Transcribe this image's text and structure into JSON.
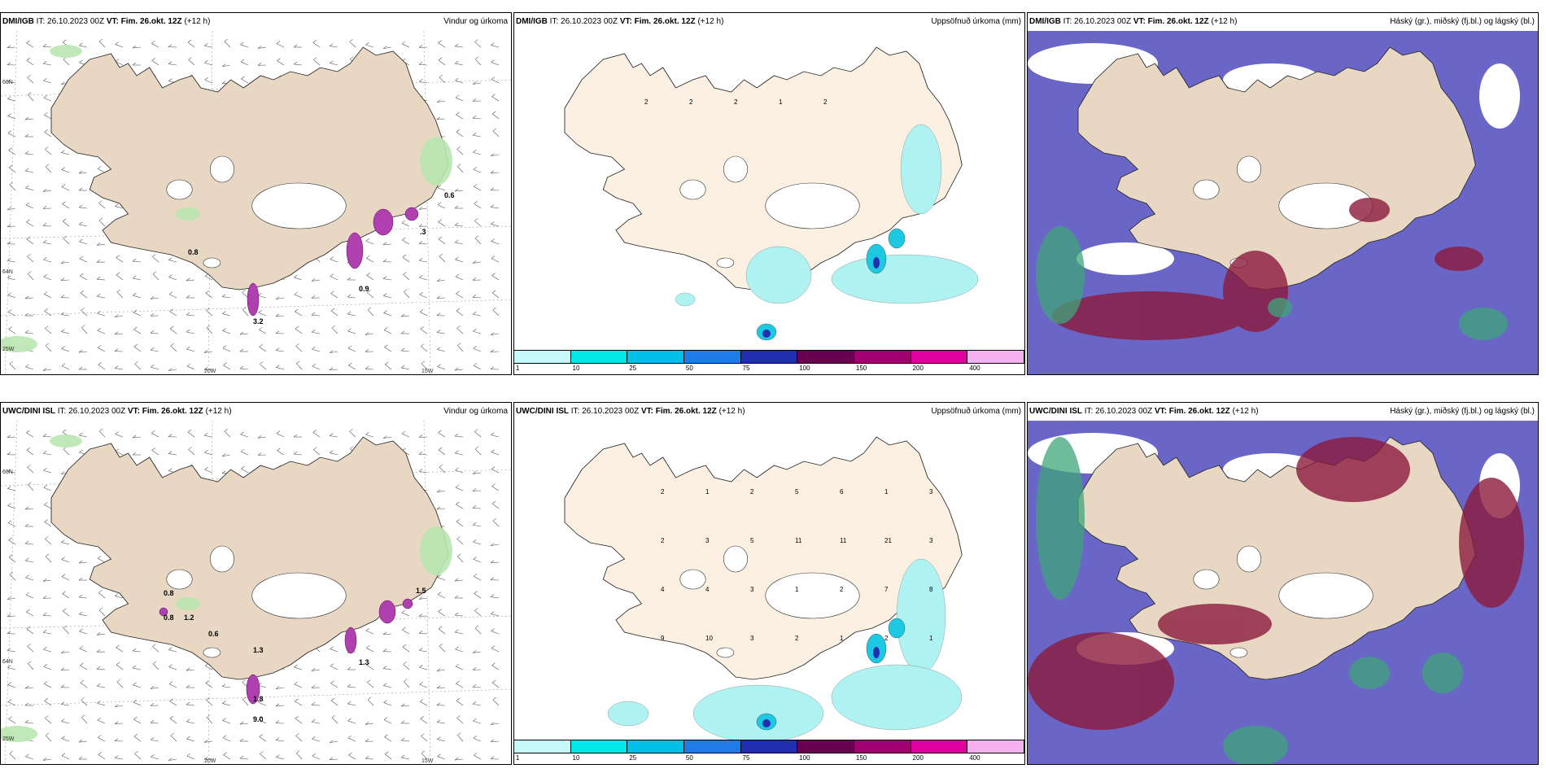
{
  "colors": {
    "land": "#e8d8c3",
    "land_light": "#fcf0e3",
    "high_cloud": "#6a66c8",
    "mid_cloud": "#8b1a3c",
    "low_cloud": "#3fa57a",
    "precip_light": "#aef2f2",
    "precip_mid": "#1cc9e0",
    "precip_heavy": "#2030b0",
    "precip_purple": "#b040b0"
  },
  "rows": [
    {
      "model": "DMI/IGB",
      "it": "IT: 26.10.2023 00Z",
      "vt": "VT: Fim. 26.okt. 12Z",
      "lead": "(+12 h)",
      "panels": {
        "wind": {
          "title": "Vindur og úrkoma",
          "values": [
            "0.6",
            ".3",
            "0.8",
            "0.9",
            "3.2"
          ]
        },
        "precip": {
          "title": "Uppsöfnuð úrkoma (mm)",
          "values": [
            "2",
            "2",
            "2",
            "1",
            "2"
          ]
        },
        "cloud": {
          "title": "Háský (gr.), miðský (fj.bl.) og lágský (bl.)"
        }
      }
    },
    {
      "model": "UWC/DINI ISL",
      "it": "IT: 26.10.2023 00Z",
      "vt": "VT: Fim. 26.okt. 12Z",
      "lead": "(+12 h)",
      "panels": {
        "wind": {
          "title": "Vindur og úrkoma",
          "values": [
            "0.8",
            "0.8",
            "1.2",
            "0.6",
            "1.3",
            "1.3",
            "1.5",
            "1.8",
            "9.0"
          ]
        },
        "precip": {
          "title": "Uppsöfnuð úrkoma (mm)",
          "values": [
            "2",
            "1",
            "2",
            "5",
            "6",
            "1",
            "3",
            "2",
            "3",
            "5",
            "11",
            "11",
            "21",
            "3",
            "4",
            "4",
            "3",
            "1",
            "2",
            "7",
            "8",
            "9",
            "10",
            "3",
            "2",
            "1",
            "2",
            "1"
          ]
        },
        "cloud": {
          "title": "Háský (gr.), miðský (fj.bl.) og lágský (bl.)"
        }
      }
    }
  ],
  "axis_labels": {
    "lon": [
      "20W",
      "15W"
    ],
    "lat": [
      "66N",
      "64N"
    ],
    "edge": [
      "25W"
    ]
  },
  "legend": {
    "ticks": [
      "1",
      "10",
      "25",
      "50",
      "75",
      "100",
      "150",
      "200",
      "400"
    ],
    "colors": [
      "#c6fafa",
      "#00e8e8",
      "#00c0e8",
      "#1f7be8",
      "#1f2fb0",
      "#6a0050",
      "#a00070",
      "#e000a0",
      "#f5b0f0"
    ]
  }
}
